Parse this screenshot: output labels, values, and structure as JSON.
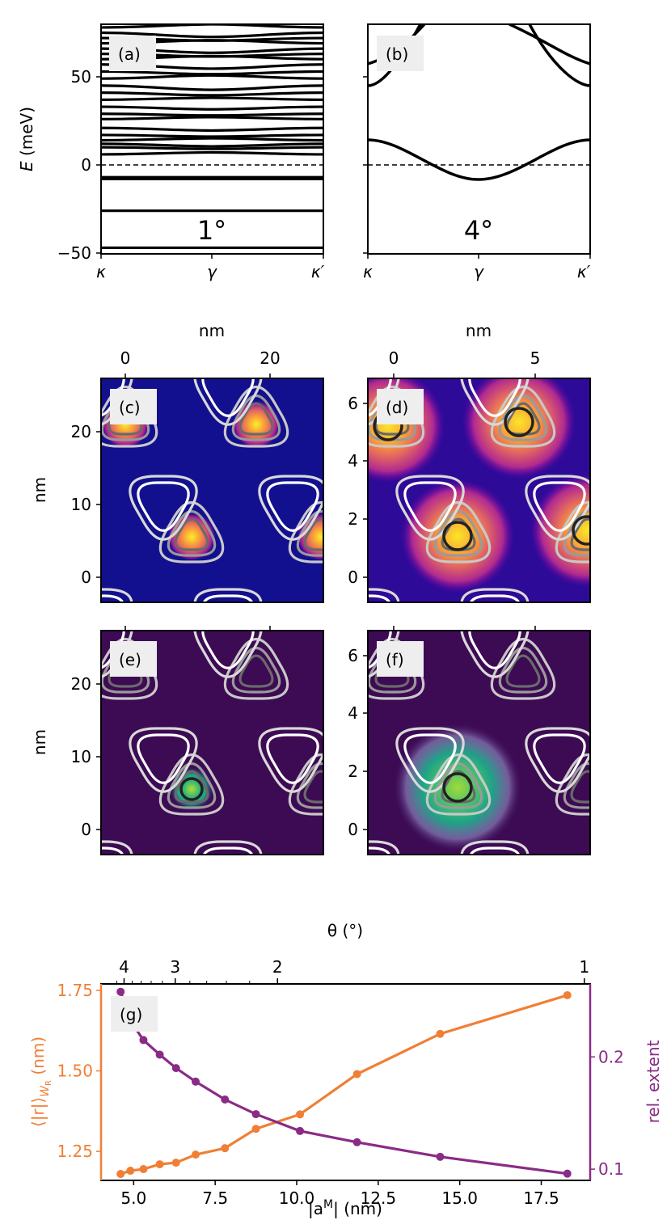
{
  "colors": {
    "orange": "#f07f35",
    "purple": "#8a2b86",
    "label_box": "#eeeeee"
  },
  "panel_a": {
    "label": "(a)",
    "angle": "1°",
    "ylabel_var": "E",
    "ylabel_unit": " (meV)",
    "yticks": [
      "50",
      "0",
      "−50"
    ],
    "xticks": [
      "κ",
      "γ",
      "κ′"
    ]
  },
  "panel_b": {
    "label": "(b)",
    "angle": "4°",
    "xticks": [
      "κ",
      "γ",
      "κ′"
    ]
  },
  "maps": {
    "c": {
      "label": "(c)"
    },
    "d": {
      "label": "(d)"
    },
    "e": {
      "label": "(e)"
    },
    "f": {
      "label": "(f)"
    },
    "left_top_axis_label": "nm",
    "right_top_axis_label": "nm",
    "left_top_ticks": [
      "0",
      "20"
    ],
    "right_top_ticks": [
      "0",
      "5"
    ],
    "left_y_label": "nm",
    "left_y_ticks": [
      "20",
      "10",
      "0"
    ],
    "right_y_ticks": [
      "6",
      "4",
      "2",
      "0"
    ]
  },
  "chart_data": [
    {
      "type": "line",
      "panel": "a",
      "ylim": [
        -50,
        80
      ],
      "band_energies_meV": [
        -47,
        -26,
        -8,
        -7,
        6,
        10,
        12,
        14,
        17,
        21,
        26,
        29,
        33,
        37,
        41,
        45,
        49,
        53,
        57,
        60,
        63,
        66,
        69,
        72,
        75,
        78
      ],
      "fermi_level_meV": 0
    },
    {
      "type": "line",
      "panel": "b",
      "ylim": [
        -50,
        80
      ],
      "fermi_level_meV": 0
    },
    {
      "type": "line",
      "panel": "g",
      "xlabel": "|a",
      "xlabel_sup": "M",
      "xlabel_unit": "| (nm)",
      "ylabel_left": "⟨|r|⟩",
      "ylabel_left_sub": "W",
      "ylabel_left_subsub": "R",
      "ylabel_left_unit": " (nm)",
      "ylabel_right": "rel. extent",
      "top_xlabel": "θ (°)",
      "top_ticks": [
        "4",
        "3",
        "2",
        "1"
      ],
      "top_tick_values": [
        4,
        3,
        2,
        1
      ],
      "xlim": [
        4.0,
        19.0
      ],
      "xticks": [
        "5.0",
        "7.5",
        "10.0",
        "12.5",
        "15.0",
        "17.5"
      ],
      "xtick_values": [
        5.0,
        7.5,
        10.0,
        12.5,
        15.0,
        17.5
      ],
      "ylim_left": [
        1.16,
        1.77
      ],
      "yticks_left": [
        "1.25",
        "1.50",
        "1.75"
      ],
      "ytick_values_left": [
        1.25,
        1.5,
        1.75
      ],
      "ylim_right": [
        0.09,
        0.265
      ],
      "yticks_right": [
        "0.1",
        "0.2"
      ],
      "ytick_values_right": [
        0.1,
        0.2
      ],
      "label": "(g)",
      "x": [
        4.6,
        4.9,
        5.3,
        5.8,
        6.3,
        6.9,
        7.8,
        8.75,
        10.1,
        11.85,
        14.4,
        18.3
      ],
      "series": [
        {
          "axis": "left",
          "values": [
            1.18,
            1.19,
            1.195,
            1.21,
            1.215,
            1.24,
            1.26,
            1.32,
            1.365,
            1.49,
            1.615,
            1.735
          ]
        },
        {
          "axis": "right",
          "values": [
            0.258,
            0.232,
            0.215,
            0.202,
            0.19,
            0.178,
            0.162,
            0.149,
            0.134,
            0.124,
            0.111,
            0.096
          ]
        }
      ]
    }
  ]
}
